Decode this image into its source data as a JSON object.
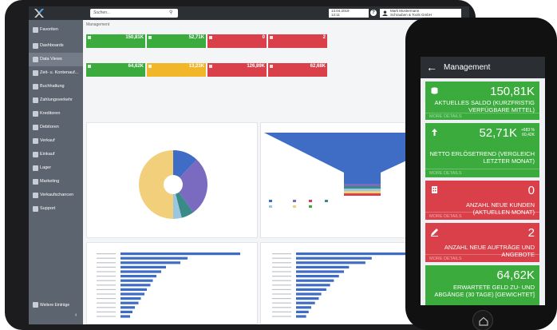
{
  "tablet": {
    "search_placeholder": "Suchen...",
    "date": "13.04.2019",
    "time": "12:11",
    "user_name": "Mark Mustermann",
    "company": "Schrauben & Tools GmbH",
    "breadcrumb": "Management",
    "sidebar": [
      {
        "label": "Favoriten"
      },
      {
        "label": "Dashboards"
      },
      {
        "label": "Data Views"
      },
      {
        "label": "Zeit- u. Kontenauf..."
      },
      {
        "label": "Buchhaltung"
      },
      {
        "label": "Zahlungsverkehr"
      },
      {
        "label": "Kreditoren"
      },
      {
        "label": "Debitoren"
      },
      {
        "label": "Verkauf"
      },
      {
        "label": "Einkauf"
      },
      {
        "label": "Lager"
      },
      {
        "label": "Marketing"
      },
      {
        "label": "Verkaufschancen"
      },
      {
        "label": "Support"
      }
    ],
    "more_entries": "Weitere Einträge",
    "kpis": [
      {
        "value": "150,81K",
        "color": "green"
      },
      {
        "value": "52,71K",
        "color": "green"
      },
      {
        "value": "0",
        "color": "red"
      },
      {
        "value": "2",
        "color": "red"
      },
      {
        "value": "64,62K",
        "color": "green"
      },
      {
        "value": "13,23K",
        "color": "yellow"
      },
      {
        "value": "126,89K",
        "color": "red"
      },
      {
        "value": "62,68K",
        "color": "red"
      }
    ]
  },
  "phone": {
    "title": "Management",
    "more_label": "MORE DETAILS",
    "cards": [
      {
        "value": "150,81K",
        "desc": "AKTUELLES SALDO (KURZFRISTIG VERFÜGBARE MITTEL)",
        "color": "#3bab3d",
        "icon": "coins-icon"
      },
      {
        "value": "52,71K",
        "trend_pct": "+683 %",
        "trend_val": "60,42K",
        "desc": "NETTO ERLÖSETREND (VERGLEICH LETZTER MONAT)",
        "color": "#3bab3d",
        "icon": "arrow-up-icon"
      },
      {
        "value": "0",
        "desc": "ANZAHL NEUE KUNDEN (AKTUELLEN MONAT)",
        "color": "#d9404a",
        "icon": "building-icon"
      },
      {
        "value": "2",
        "desc": "ANZAHL NEUE AUFTRÄGE UND ANGEBOTE",
        "color": "#d9404a",
        "icon": "pencil-icon"
      },
      {
        "value": "64,62K",
        "desc": "ERWARTETE GELD ZU- UND ABGÄNGE (30 TAGE) [GEWICHTET]",
        "color": "#3bab3d",
        "icon": ""
      }
    ]
  },
  "chart_data": [
    {
      "type": "pie",
      "title": "",
      "values": [
        0.12,
        0.28,
        0.06,
        0.04,
        0.5
      ],
      "colors": [
        "#3f6cc4",
        "#7a6bc0",
        "#3a8a8a",
        "#9ac6e0",
        "#f2cf7a"
      ]
    },
    {
      "type": "bar",
      "title": "",
      "orientation": "horizontal",
      "values": [
        100,
        56,
        50,
        38,
        34,
        30,
        27,
        25,
        22,
        20,
        17,
        15,
        12,
        10,
        8
      ]
    },
    {
      "type": "bar",
      "title": "",
      "orientation": "horizontal",
      "values": [
        100,
        60,
        55,
        42,
        38,
        34,
        30,
        27,
        24,
        20,
        18,
        15,
        12,
        10,
        8
      ]
    }
  ]
}
